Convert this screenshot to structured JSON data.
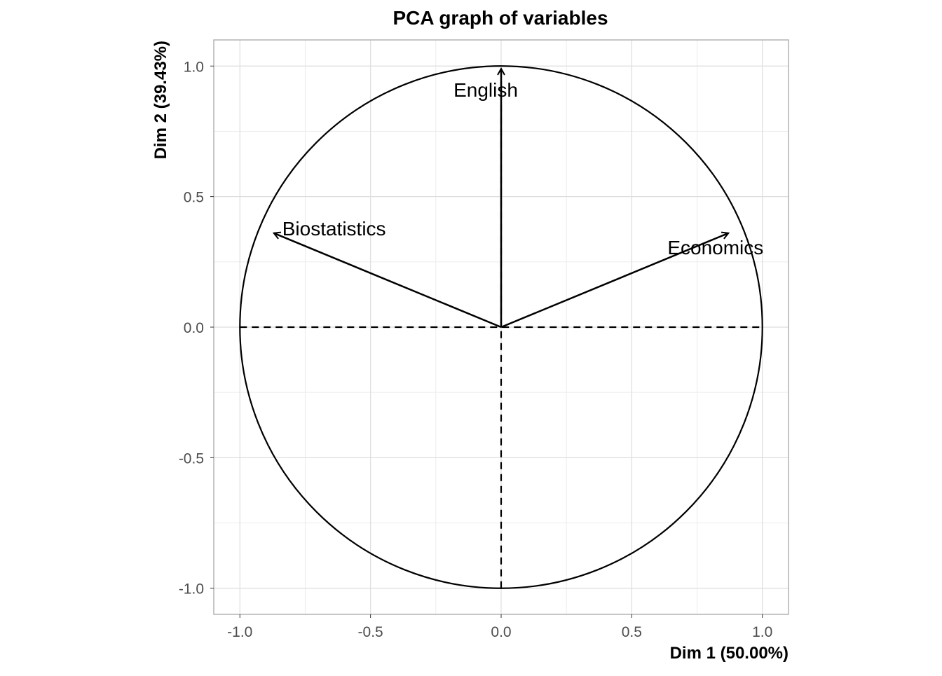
{
  "chart_data": {
    "type": "scatter",
    "subtype": "pca-correlation-circle",
    "title": "PCA graph of variables",
    "xlabel": "Dim 1 (50.00%)",
    "ylabel": "Dim 2 (39.43%)",
    "xlim": [
      -1.1,
      1.1
    ],
    "ylim": [
      -1.1,
      1.1
    ],
    "xticks": [
      -1.0,
      -0.5,
      0.0,
      0.5,
      1.0
    ],
    "xtick_labels": [
      "-1.0",
      "-0.5",
      "0.0",
      "0.5",
      "1.0"
    ],
    "yticks": [
      -1.0,
      -0.5,
      0.0,
      0.5,
      1.0
    ],
    "ytick_labels": [
      "-1.0",
      "-0.5",
      "0.0",
      "0.5",
      "1.0"
    ],
    "grid": true,
    "unit_circle": true,
    "variables": [
      {
        "name": "English",
        "x": 0.0,
        "y": 0.99
      },
      {
        "name": "Biostatistics",
        "x": -0.87,
        "y": 0.36
      },
      {
        "name": "Economics",
        "x": 0.87,
        "y": 0.36
      }
    ],
    "colors": {
      "arrows": "#000000",
      "grid": "#dedede",
      "panel_border": "#b3b3b3",
      "tick_text": "#4d4d4d"
    }
  }
}
